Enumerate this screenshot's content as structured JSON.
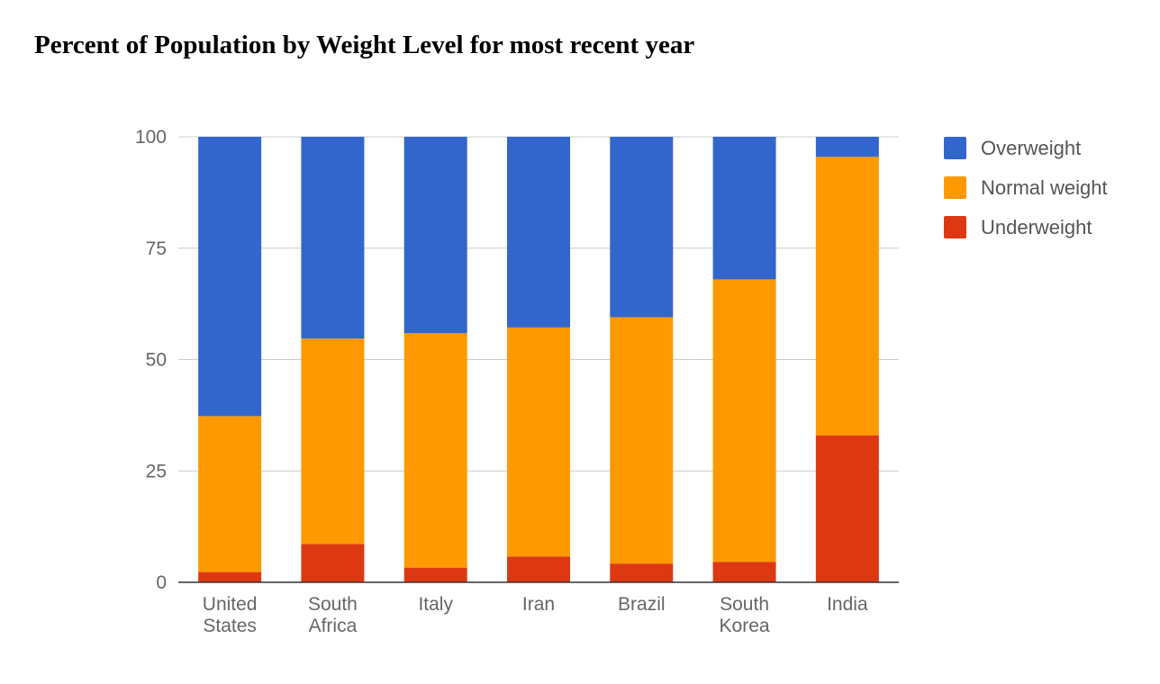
{
  "colors": {
    "overweight": "#3366cc",
    "normal": "#ff9900",
    "underweight": "#dc3912",
    "grid": "#cccccc",
    "axis": "#333333",
    "tick_label": "#666666",
    "legend_text": "#555555"
  },
  "chart_data": {
    "type": "bar",
    "stacked": true,
    "title": "Percent of Population by Weight Level for most recent year",
    "xlabel": "",
    "ylabel": "",
    "ylim": [
      0,
      100
    ],
    "yticks": [
      0,
      25,
      50,
      75,
      100
    ],
    "grid": true,
    "legend_position": "right",
    "categories": [
      [
        "United",
        "States"
      ],
      [
        "South",
        "Africa"
      ],
      [
        "Italy"
      ],
      [
        "Iran"
      ],
      [
        "Brazil"
      ],
      [
        "South",
        "Korea"
      ],
      [
        "India"
      ]
    ],
    "series": [
      {
        "name": "Underweight",
        "color": "#dc3912",
        "values": [
          2.3,
          8.6,
          3.3,
          5.8,
          4.2,
          4.6,
          33.0
        ]
      },
      {
        "name": "Normal weight",
        "color": "#ff9900",
        "values": [
          35.0,
          46.1,
          52.6,
          51.4,
          55.3,
          63.4,
          62.5
        ]
      },
      {
        "name": "Overweight",
        "color": "#3366cc",
        "values": [
          62.7,
          45.3,
          44.1,
          42.8,
          40.5,
          32.0,
          4.5
        ]
      }
    ],
    "legend": [
      "Overweight",
      "Normal weight",
      "Underweight"
    ]
  }
}
